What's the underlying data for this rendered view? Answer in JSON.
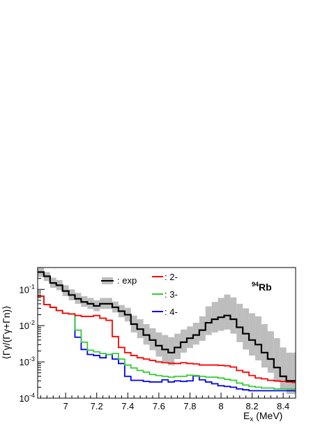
{
  "chart_data": {
    "type": "line",
    "style": "step-histogram",
    "xlabel_main": "E",
    "xlabel_sub": "x",
    "xlabel_unit": " (MeV)",
    "ylabel": "⟨Γγ/(Γγ+Γn)⟩",
    "annotation": {
      "sup": "94",
      "base": "Rb"
    },
    "xlim": [
      6.82,
      8.48
    ],
    "ylim": [
      0.0001,
      0.4
    ],
    "yscale": "log",
    "x_ticks": [
      7.0,
      7.2,
      7.4,
      7.6,
      7.8,
      8.0,
      8.2,
      8.4
    ],
    "x_tick_labels": [
      "7",
      "7.2",
      "7.4",
      "7.6",
      "7.8",
      "8",
      "8.2",
      "8.4"
    ],
    "y_ticks": [
      0.0001,
      0.001,
      0.01,
      0.1
    ],
    "y_tick_labels": [
      {
        "base": "10",
        "exp": "-4"
      },
      {
        "base": "10",
        "exp": "-3"
      },
      {
        "base": "10",
        "exp": "-2"
      },
      {
        "base": "10",
        "exp": "-1"
      }
    ],
    "legend_position": "top",
    "bin_edges": [
      6.82,
      6.86,
      6.9,
      6.94,
      6.98,
      7.02,
      7.06,
      7.1,
      7.14,
      7.18,
      7.22,
      7.26,
      7.3,
      7.34,
      7.38,
      7.42,
      7.46,
      7.5,
      7.54,
      7.58,
      7.62,
      7.66,
      7.7,
      7.74,
      7.78,
      7.82,
      7.86,
      7.9,
      7.94,
      7.98,
      8.02,
      8.06,
      8.1,
      8.14,
      8.18,
      8.22,
      8.26,
      8.3,
      8.34,
      8.38,
      8.42,
      8.46,
      8.48
    ],
    "series": [
      {
        "name": ": exp",
        "color": "#000000",
        "values": [
          0.3,
          0.23,
          0.15,
          0.13,
          0.09,
          0.07,
          0.055,
          0.045,
          0.04,
          0.035,
          0.04,
          0.04,
          0.032,
          0.025,
          0.02,
          0.011,
          0.008,
          0.0055,
          0.004,
          0.0028,
          0.0022,
          0.0018,
          0.0025,
          0.0035,
          0.0045,
          0.0055,
          0.0075,
          0.012,
          0.015,
          0.017,
          0.019,
          0.015,
          0.009,
          0.006,
          0.004,
          0.003,
          0.0018,
          0.0012,
          0.0007,
          0.0004,
          0.0003,
          0.0003
        ],
        "band_low": [
          0.22,
          0.17,
          0.11,
          0.095,
          0.065,
          0.05,
          0.04,
          0.033,
          0.029,
          0.025,
          0.029,
          0.029,
          0.023,
          0.017,
          0.013,
          0.0065,
          0.0045,
          0.003,
          0.0021,
          0.0014,
          0.001,
          0.0008,
          0.0012,
          0.0018,
          0.0024,
          0.003,
          0.0038,
          0.0055,
          0.0065,
          0.0072,
          0.0078,
          0.006,
          0.0035,
          0.0022,
          0.0015,
          0.0011,
          0.0007,
          0.0005,
          0.00028,
          0.00018,
          0.00013,
          0.00013
        ],
        "band_high": [
          0.39,
          0.3,
          0.21,
          0.18,
          0.13,
          0.1,
          0.08,
          0.065,
          0.058,
          0.05,
          0.058,
          0.058,
          0.046,
          0.037,
          0.031,
          0.019,
          0.015,
          0.011,
          0.0085,
          0.0065,
          0.0055,
          0.0048,
          0.006,
          0.0078,
          0.0095,
          0.012,
          0.018,
          0.034,
          0.045,
          0.058,
          0.072,
          0.06,
          0.04,
          0.03,
          0.022,
          0.018,
          0.011,
          0.007,
          0.0045,
          0.0025,
          0.0018,
          0.0018
        ]
      },
      {
        "name": ": 2-",
        "color": "#ff0000",
        "values": [
          0.065,
          0.038,
          0.032,
          0.026,
          0.022,
          0.021,
          0.019,
          0.018,
          0.018,
          0.019,
          0.016,
          0.014,
          0.005,
          0.0025,
          0.0018,
          0.0015,
          0.0013,
          0.0012,
          0.0011,
          0.001,
          0.00095,
          0.00092,
          0.0009,
          0.00095,
          0.0009,
          0.00088,
          0.00082,
          0.00082,
          0.00082,
          0.0008,
          0.00078,
          0.00072,
          0.00058,
          0.00052,
          0.00042,
          0.00036,
          0.00034,
          0.00031,
          0.0003,
          0.00029,
          0.00028,
          0.00027
        ]
      },
      {
        "name": ": 3-",
        "color": "#33cc33",
        "values": [
          0.065,
          0.038,
          0.032,
          0.026,
          0.022,
          0.021,
          0.0075,
          0.0035,
          0.0021,
          0.0019,
          0.0017,
          0.0016,
          0.0017,
          0.0012,
          0.00082,
          0.00068,
          0.00058,
          0.00052,
          0.00045,
          0.00042,
          0.0004,
          0.00038,
          0.0004,
          0.0004,
          0.00043,
          0.00042,
          0.0004,
          0.00038,
          0.00038,
          0.00036,
          0.00033,
          0.00031,
          0.00026,
          0.00023,
          0.00021,
          0.0002,
          0.00019,
          0.00019,
          0.00018,
          0.00018,
          0.00018,
          0.00018
        ]
      },
      {
        "name": ": 4-",
        "color": "#0000ee",
        "values": [
          0.065,
          0.038,
          0.032,
          0.026,
          0.022,
          0.021,
          0.0048,
          0.0022,
          0.0016,
          0.0015,
          0.0013,
          0.0016,
          0.0012,
          0.0009,
          0.0004,
          0.00031,
          0.00031,
          0.00029,
          0.00028,
          0.00028,
          0.00032,
          0.00028,
          0.0003,
          0.00029,
          0.0003,
          0.00041,
          0.00032,
          0.00028,
          0.00025,
          0.00022,
          0.00021,
          0.0002,
          0.00018,
          0.00017,
          0.00016,
          0.00016,
          0.00016,
          0.00016,
          0.00016,
          0.00016,
          0.00016,
          0.00016
        ]
      }
    ]
  }
}
